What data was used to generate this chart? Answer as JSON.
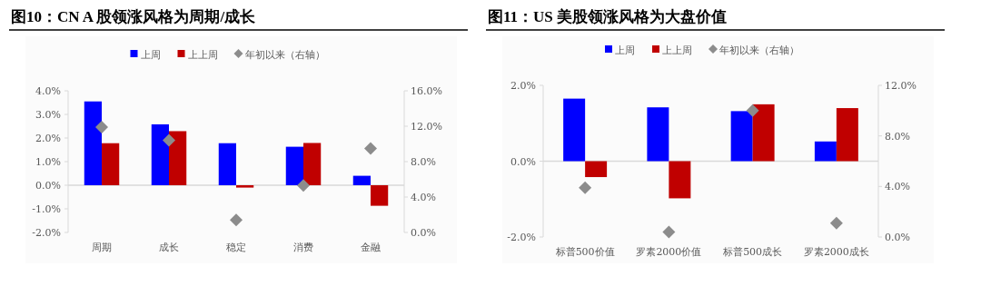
{
  "chart_data": [
    {
      "type": "bar",
      "title": "图10：CN A 股领涨风格为周期/成长",
      "categories": [
        "周期",
        "成长",
        "稳定",
        "消费",
        "金融"
      ],
      "series": [
        {
          "name": "上周",
          "color": "#0000ff",
          "values": [
            3.55,
            2.58,
            1.78,
            1.63,
            0.4
          ]
        },
        {
          "name": "上上周",
          "color": "#c00000",
          "values": [
            1.78,
            2.29,
            -0.1,
            1.79,
            -0.87
          ]
        },
        {
          "name": "年初以来（右轴）",
          "type": "scatter",
          "axis": "y2",
          "color": "#8c8c8c",
          "values": [
            11.9,
            10.4,
            1.4,
            5.3,
            9.5
          ]
        }
      ],
      "ylim": [
        -2,
        4
      ],
      "yticks": [
        {
          "value": -2,
          "label": "-2.0%"
        },
        {
          "value": -1,
          "label": "-1.0%"
        },
        {
          "value": 0,
          "label": "0.0%"
        },
        {
          "value": 1,
          "label": "1.0%"
        },
        {
          "value": 2,
          "label": "2.0%"
        },
        {
          "value": 3,
          "label": "3.0%"
        },
        {
          "value": 4,
          "label": "4.0%"
        }
      ],
      "y2lim": [
        0,
        16
      ],
      "y2ticks": [
        {
          "value": 0,
          "label": "0.0%"
        },
        {
          "value": 4,
          "label": "4.0%"
        },
        {
          "value": 8,
          "label": "8.0%"
        },
        {
          "value": 12,
          "label": "12.0%"
        },
        {
          "value": 16,
          "label": "16.0%"
        }
      ],
      "marker": "diamond",
      "legend": "top"
    },
    {
      "type": "bar",
      "title": "图11：US 美股领涨风格为大盘价值",
      "categories": [
        "标普500价值",
        "罗素2000价值",
        "标普500成长",
        "罗素2000成长"
      ],
      "series": [
        {
          "name": "上周",
          "color": "#0000ff",
          "values": [
            1.65,
            1.42,
            1.32,
            0.52
          ]
        },
        {
          "name": "上上周",
          "color": "#c00000",
          "values": [
            -0.42,
            -0.98,
            1.5,
            1.4
          ]
        },
        {
          "name": "年初以来（右轴）",
          "type": "scatter",
          "axis": "y2",
          "color": "#8c8c8c",
          "values": [
            3.9,
            0.4,
            10.0,
            1.1
          ]
        }
      ],
      "ylim": [
        -2,
        2
      ],
      "yticks": [
        {
          "value": -2,
          "label": "-2.0%"
        },
        {
          "value": 0,
          "label": "0.0%"
        },
        {
          "value": 2,
          "label": "2.0%"
        }
      ],
      "y2lim": [
        0,
        12
      ],
      "y2ticks": [
        {
          "value": 0,
          "label": "0.0%"
        },
        {
          "value": 4,
          "label": "4.0%"
        },
        {
          "value": 8,
          "label": "8.0%"
        },
        {
          "value": 12,
          "label": "12.0%"
        }
      ],
      "marker": "diamond",
      "legend": "top"
    }
  ]
}
